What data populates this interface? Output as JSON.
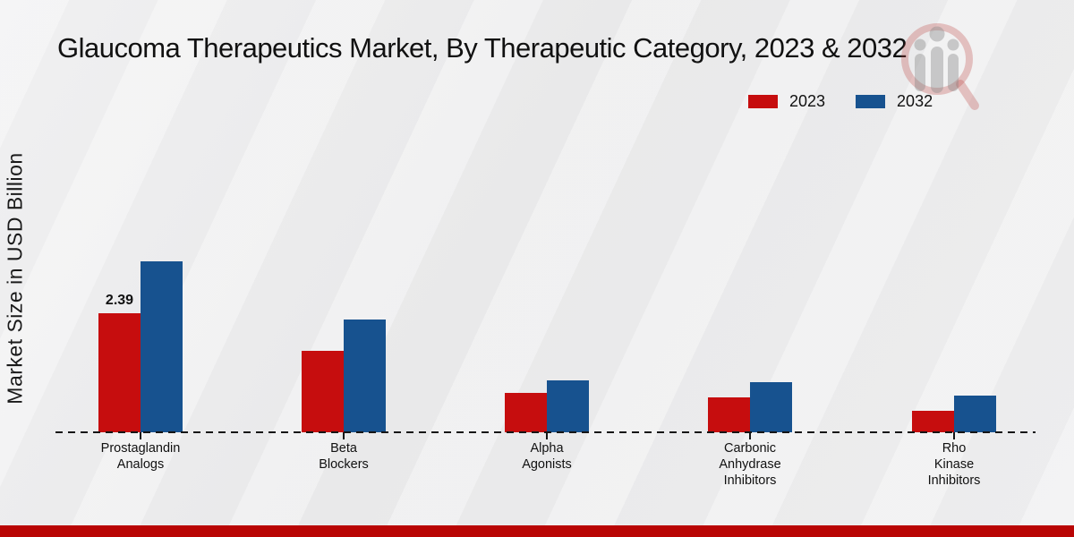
{
  "title": "Glaucoma Therapeutics Market, By Therapeutic Category, 2023 & 2032",
  "legend": {
    "items": [
      {
        "label": "2023",
        "color": "#c60d0e"
      },
      {
        "label": "2032",
        "color": "#17528f"
      }
    ]
  },
  "watermark_icon": "magnifier-bar-chart-logo",
  "footer": {
    "color": "#b90504"
  },
  "chart_data": {
    "type": "bar",
    "title": "Glaucoma Therapeutics Market, By Therapeutic Category, 2023 & 2032",
    "xlabel": "",
    "ylabel": "Market Size in USD Billion",
    "ylim": [
      0,
      3.6
    ],
    "grid": false,
    "baseline_style": "dashed",
    "legend_position": "top-right",
    "categories": [
      "Prostaglandin Analogs",
      "Beta Blockers",
      "Alpha Agonists",
      "Carbonic Anhydrase Inhibitors",
      "Rho Kinase Inhibitors"
    ],
    "category_label_lines": [
      [
        "Prostaglandin",
        "Analogs"
      ],
      [
        "Beta",
        "Blockers"
      ],
      [
        "Alpha",
        "Agonists"
      ],
      [
        "Carbonic",
        "Anhydrase",
        "Inhibitors"
      ],
      [
        "Rho",
        "Kinase",
        "Inhibitors"
      ]
    ],
    "series": [
      {
        "name": "2023",
        "color": "#c60d0e",
        "values": [
          2.39,
          1.63,
          0.8,
          0.71,
          0.43
        ]
      },
      {
        "name": "2032",
        "color": "#17528f",
        "values": [
          3.44,
          2.26,
          1.05,
          1.01,
          0.74
        ]
      }
    ],
    "annotations": [
      {
        "series": 0,
        "category": 0,
        "text": "2.39"
      }
    ]
  }
}
